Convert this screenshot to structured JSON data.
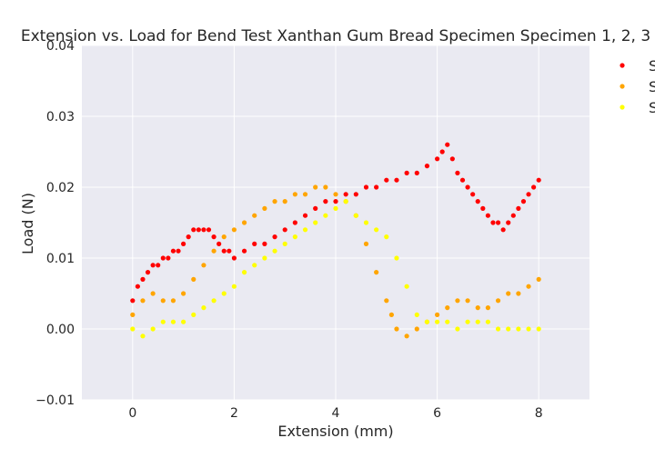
{
  "chart_data": {
    "type": "scatter",
    "title": "Extension vs. Load for Bend Test Xanthan Gum Bread Specimen Specimen 1, 2, 3",
    "xlabel": "Extension (mm)",
    "ylabel": "Load (N)",
    "xlim": [
      -1,
      9
    ],
    "ylim": [
      -0.01,
      0.04
    ],
    "xticks": [
      0,
      2,
      4,
      6,
      8
    ],
    "yticks": [
      -0.01,
      0.0,
      0.01,
      0.02,
      0.03,
      0.04
    ],
    "xtick_labels": [
      "0",
      "2",
      "4",
      "6",
      "8"
    ],
    "ytick_labels": [
      "−0.01",
      "0.00",
      "0.01",
      "0.02",
      "0.03",
      "0.04"
    ],
    "grid": true,
    "background": "#eaeaf2",
    "legend_position": "top-right, outside plot",
    "series": [
      {
        "name": "S",
        "color": "#ff0000",
        "x": [
          0.0,
          0.1,
          0.2,
          0.3,
          0.4,
          0.5,
          0.6,
          0.7,
          0.8,
          0.9,
          1.0,
          1.1,
          1.2,
          1.3,
          1.4,
          1.5,
          1.6,
          1.7,
          1.8,
          1.9,
          2.0,
          2.2,
          2.4,
          2.6,
          2.8,
          3.0,
          3.2,
          3.4,
          3.6,
          3.8,
          4.0,
          4.2,
          4.4,
          4.6,
          4.8,
          5.0,
          5.2,
          5.4,
          5.6,
          5.8,
          6.0,
          6.1,
          6.2,
          6.3,
          6.4,
          6.5,
          6.6,
          6.7,
          6.8,
          6.9,
          7.0,
          7.1,
          7.2,
          7.3,
          7.4,
          7.5,
          7.6,
          7.7,
          7.8,
          7.9,
          8.0
        ],
        "y": [
          0.004,
          0.006,
          0.007,
          0.008,
          0.009,
          0.009,
          0.01,
          0.01,
          0.011,
          0.011,
          0.012,
          0.013,
          0.014,
          0.014,
          0.014,
          0.014,
          0.013,
          0.012,
          0.011,
          0.011,
          0.01,
          0.011,
          0.012,
          0.012,
          0.013,
          0.014,
          0.015,
          0.016,
          0.017,
          0.018,
          0.018,
          0.019,
          0.019,
          0.02,
          0.02,
          0.021,
          0.021,
          0.022,
          0.022,
          0.023,
          0.024,
          0.025,
          0.026,
          0.024,
          0.022,
          0.021,
          0.02,
          0.019,
          0.018,
          0.017,
          0.016,
          0.015,
          0.015,
          0.014,
          0.015,
          0.016,
          0.017,
          0.018,
          0.019,
          0.02,
          0.021
        ]
      },
      {
        "name": "S",
        "color": "#ffa500",
        "x": [
          0.0,
          0.2,
          0.4,
          0.6,
          0.8,
          1.0,
          1.2,
          1.4,
          1.6,
          1.8,
          2.0,
          2.2,
          2.4,
          2.6,
          2.8,
          3.0,
          3.2,
          3.4,
          3.6,
          3.8,
          4.0,
          4.2,
          4.4,
          4.6,
          4.8,
          5.0,
          5.1,
          5.2,
          5.4,
          5.6,
          5.8,
          6.0,
          6.2,
          6.4,
          6.6,
          6.8,
          7.0,
          7.2,
          7.4,
          7.6,
          7.8,
          8.0
        ],
        "y": [
          0.002,
          0.004,
          0.005,
          0.004,
          0.004,
          0.005,
          0.007,
          0.009,
          0.011,
          0.013,
          0.014,
          0.015,
          0.016,
          0.017,
          0.018,
          0.018,
          0.019,
          0.019,
          0.02,
          0.02,
          0.019,
          0.018,
          0.016,
          0.012,
          0.008,
          0.004,
          0.002,
          0.0,
          -0.001,
          0.0,
          0.001,
          0.002,
          0.003,
          0.004,
          0.004,
          0.003,
          0.003,
          0.004,
          0.005,
          0.005,
          0.006,
          0.007
        ]
      },
      {
        "name": "S",
        "color": "#ffff00",
        "x": [
          0.0,
          0.2,
          0.4,
          0.6,
          0.8,
          1.0,
          1.2,
          1.4,
          1.6,
          1.8,
          2.0,
          2.2,
          2.4,
          2.6,
          2.8,
          3.0,
          3.2,
          3.4,
          3.6,
          3.8,
          4.0,
          4.2,
          4.4,
          4.6,
          4.8,
          5.0,
          5.2,
          5.4,
          5.6,
          5.8,
          6.0,
          6.2,
          6.4,
          6.6,
          6.8,
          7.0,
          7.2,
          7.4,
          7.6,
          7.8,
          8.0
        ],
        "y": [
          0.0,
          -0.001,
          0.0,
          0.001,
          0.001,
          0.001,
          0.002,
          0.003,
          0.004,
          0.005,
          0.006,
          0.008,
          0.009,
          0.01,
          0.011,
          0.012,
          0.013,
          0.014,
          0.015,
          0.016,
          0.017,
          0.018,
          0.016,
          0.015,
          0.014,
          0.013,
          0.01,
          0.006,
          0.002,
          0.001,
          0.001,
          0.001,
          0.0,
          0.001,
          0.001,
          0.001,
          0.0,
          0.0,
          0.0,
          0.0,
          0.0
        ]
      }
    ]
  }
}
